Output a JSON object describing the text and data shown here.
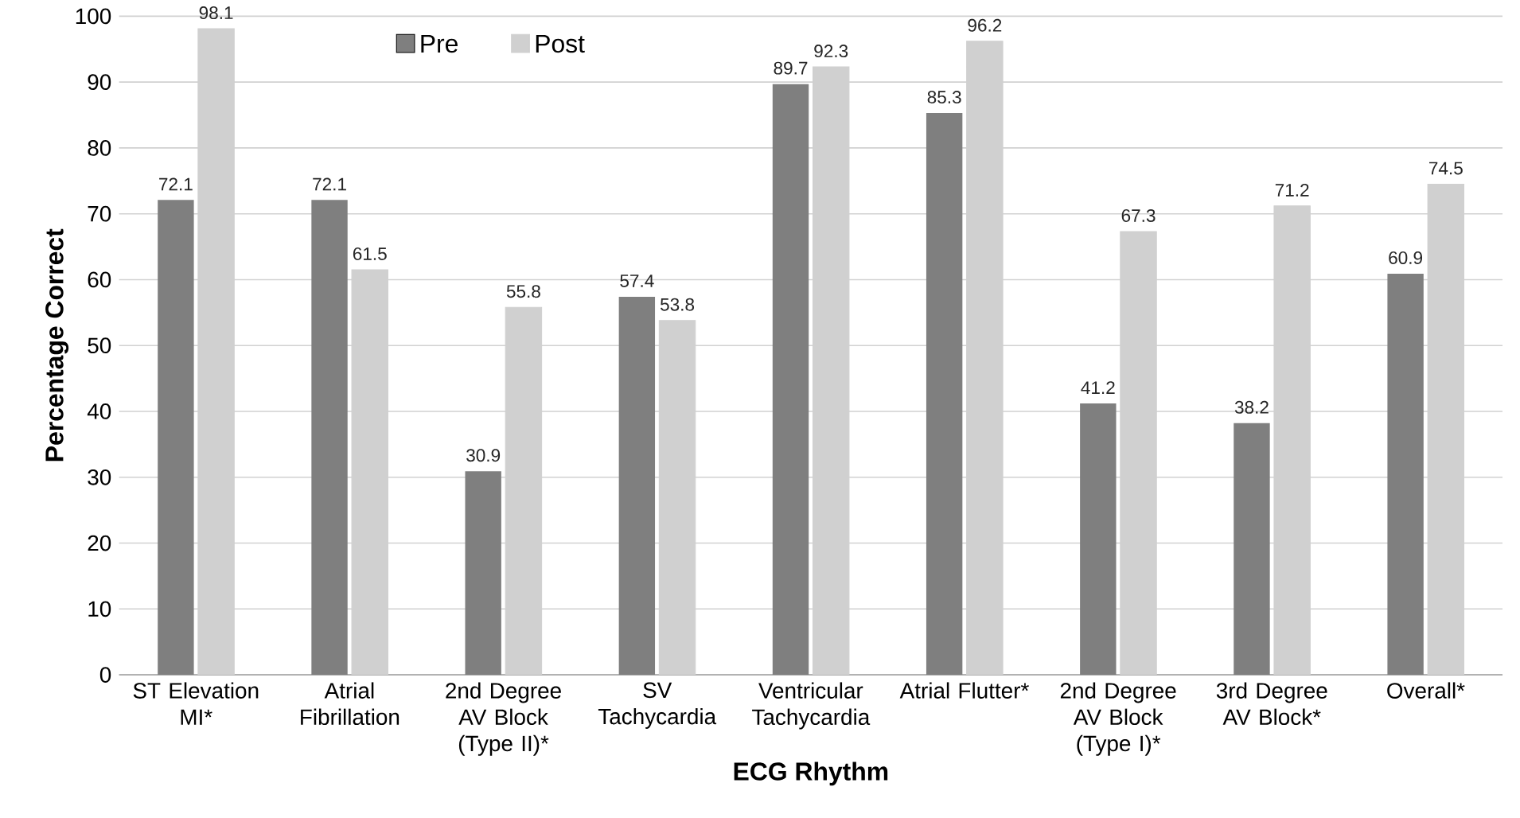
{
  "chart_data": {
    "type": "bar",
    "xlabel": "ECG Rhythm",
    "ylabel": "Percentage Correct",
    "categories": [
      "ST Elevation MI*",
      "Atrial Fibrillation",
      "2nd Degree AV Block (Type II)*",
      "SV Tachycardia",
      "Ventricular Tachycardia",
      "Atrial Flutter*",
      "2nd Degree AV Block (Type I)*",
      "3rd Degree AV Block*",
      "Overall*"
    ],
    "series": [
      {
        "name": "Pre",
        "color": "#7f7f7f",
        "values": [
          72.1,
          72.1,
          30.9,
          57.4,
          89.7,
          85.3,
          41.2,
          38.2,
          60.9
        ]
      },
      {
        "name": "Post",
        "color": "#d0d0d0",
        "values": [
          98.1,
          61.5,
          55.8,
          53.8,
          92.3,
          96.2,
          67.3,
          71.2,
          74.5
        ]
      }
    ],
    "ylim": [
      0,
      100
    ],
    "yticks": [
      0,
      10,
      20,
      30,
      40,
      50,
      60,
      70,
      80,
      90,
      100
    ],
    "grid": "y",
    "legend": "top",
    "data_labels": true
  }
}
